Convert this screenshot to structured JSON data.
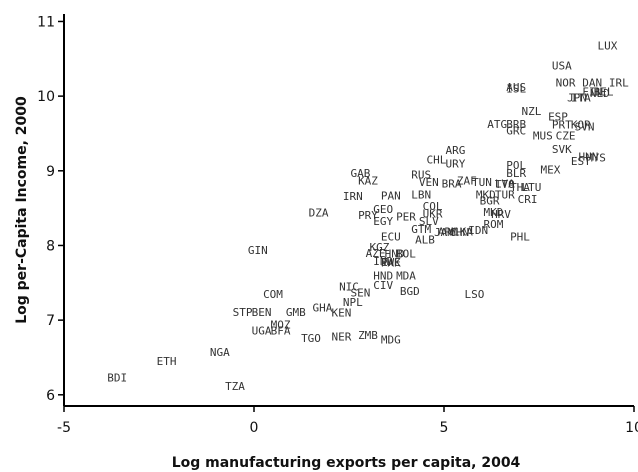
{
  "chart_data": {
    "type": "scatter",
    "xlabel": "Log manufacturing exports per capita, 2004",
    "ylabel": "Log per-Capita Income, 2000",
    "xlim": [
      -5,
      10
    ],
    "ylim": [
      5.85,
      11.1
    ],
    "xticks": [
      -5,
      0,
      5,
      10
    ],
    "yticks": [
      6,
      7,
      8,
      9,
      10,
      11
    ],
    "grid": false,
    "marker": "country-code text label",
    "points": [
      {
        "label": "LUX",
        "x": 9.3,
        "y": 10.68
      },
      {
        "label": "USA",
        "x": 8.1,
        "y": 10.41
      },
      {
        "label": "NOR",
        "x": 8.2,
        "y": 10.18
      },
      {
        "label": "DAN",
        "x": 8.9,
        "y": 10.18
      },
      {
        "label": "IRL",
        "x": 9.6,
        "y": 10.18
      },
      {
        "label": "AUS",
        "x": 6.9,
        "y": 10.12
      },
      {
        "label": "ISL",
        "x": 6.9,
        "y": 10.1
      },
      {
        "label": "FIN",
        "x": 8.9,
        "y": 10.06
      },
      {
        "label": "BEL",
        "x": 9.2,
        "y": 10.06
      },
      {
        "label": "NLD",
        "x": 9.1,
        "y": 10.04
      },
      {
        "label": "ITA",
        "x": 8.6,
        "y": 9.98
      },
      {
        "label": "JPN",
        "x": 8.5,
        "y": 9.98
      },
      {
        "label": "NZL",
        "x": 7.3,
        "y": 9.8
      },
      {
        "label": "ESP",
        "x": 8.0,
        "y": 9.73
      },
      {
        "label": "ATG",
        "x": 6.4,
        "y": 9.63
      },
      {
        "label": "BRB",
        "x": 6.9,
        "y": 9.63
      },
      {
        "label": "PRT",
        "x": 8.1,
        "y": 9.62
      },
      {
        "label": "KOR",
        "x": 8.6,
        "y": 9.62
      },
      {
        "label": "SVN",
        "x": 8.7,
        "y": 9.59
      },
      {
        "label": "GRC",
        "x": 6.9,
        "y": 9.54
      },
      {
        "label": "MUS",
        "x": 7.6,
        "y": 9.47
      },
      {
        "label": "CZE",
        "x": 8.2,
        "y": 9.47
      },
      {
        "label": "SVK",
        "x": 8.1,
        "y": 9.29
      },
      {
        "label": "ARG",
        "x": 5.3,
        "y": 9.28
      },
      {
        "label": "HUN",
        "x": 8.8,
        "y": 9.19
      },
      {
        "label": "MYS",
        "x": 9.0,
        "y": 9.18
      },
      {
        "label": "EST",
        "x": 8.6,
        "y": 9.13
      },
      {
        "label": "CHL",
        "x": 4.8,
        "y": 9.15
      },
      {
        "label": "URY",
        "x": 5.3,
        "y": 9.1
      },
      {
        "label": "POL",
        "x": 6.9,
        "y": 9.08
      },
      {
        "label": "MEX",
        "x": 7.8,
        "y": 9.02
      },
      {
        "label": "BLR",
        "x": 6.9,
        "y": 8.97
      },
      {
        "label": "GAB",
        "x": 2.8,
        "y": 8.97
      },
      {
        "label": "RUS",
        "x": 4.4,
        "y": 8.95
      },
      {
        "label": "KAZ",
        "x": 3.0,
        "y": 8.87
      },
      {
        "label": "VEN",
        "x": 4.6,
        "y": 8.85
      },
      {
        "label": "ZAF",
        "x": 5.6,
        "y": 8.87
      },
      {
        "label": "TUN",
        "x": 6.0,
        "y": 8.85
      },
      {
        "label": "BRA",
        "x": 5.2,
        "y": 8.83
      },
      {
        "label": "LVA",
        "x": 6.6,
        "y": 8.83
      },
      {
        "label": "TTO",
        "x": 6.6,
        "y": 8.82
      },
      {
        "label": "THA",
        "x": 7.0,
        "y": 8.78
      },
      {
        "label": "LTU",
        "x": 7.3,
        "y": 8.78
      },
      {
        "label": "PAN",
        "x": 3.6,
        "y": 8.67
      },
      {
        "label": "IRN",
        "x": 2.6,
        "y": 8.66
      },
      {
        "label": "LBN",
        "x": 4.4,
        "y": 8.68
      },
      {
        "label": "MKD",
        "x": 6.1,
        "y": 8.68
      },
      {
        "label": "TUR",
        "x": 6.6,
        "y": 8.68
      },
      {
        "label": "CRI",
        "x": 7.2,
        "y": 8.62
      },
      {
        "label": "BGR",
        "x": 6.2,
        "y": 8.6
      },
      {
        "label": "COL",
        "x": 4.7,
        "y": 8.53
      },
      {
        "label": "MKD",
        "x": 6.3,
        "y": 8.45
      },
      {
        "label": "HRV",
        "x": 6.5,
        "y": 8.42
      },
      {
        "label": "DZA",
        "x": 1.7,
        "y": 8.44
      },
      {
        "label": "GEO",
        "x": 3.4,
        "y": 8.49
      },
      {
        "label": "PRY",
        "x": 3.0,
        "y": 8.41
      },
      {
        "label": "UKR",
        "x": 4.7,
        "y": 8.43
      },
      {
        "label": "PER",
        "x": 4.0,
        "y": 8.39
      },
      {
        "label": "EGY",
        "x": 3.4,
        "y": 8.33
      },
      {
        "label": "SLV",
        "x": 4.6,
        "y": 8.33
      },
      {
        "label": "ROM",
        "x": 6.3,
        "y": 8.29
      },
      {
        "label": "GTM",
        "x": 4.4,
        "y": 8.22
      },
      {
        "label": "ECU",
        "x": 3.6,
        "y": 8.12
      },
      {
        "label": "ARM",
        "x": 5.1,
        "y": 8.19
      },
      {
        "label": "JAM",
        "x": 5.0,
        "y": 8.18
      },
      {
        "label": "LKA",
        "x": 5.5,
        "y": 8.19
      },
      {
        "label": "IDN",
        "x": 5.9,
        "y": 8.21
      },
      {
        "label": "CHN",
        "x": 5.4,
        "y": 8.18
      },
      {
        "label": "ALB",
        "x": 4.5,
        "y": 8.08
      },
      {
        "label": "PHL",
        "x": 7.0,
        "y": 8.12
      },
      {
        "label": "KGZ",
        "x": 3.3,
        "y": 7.98
      },
      {
        "label": "GIN",
        "x": 0.1,
        "y": 7.94
      },
      {
        "label": "AZE",
        "x": 3.2,
        "y": 7.9
      },
      {
        "label": "HND",
        "x": 3.7,
        "y": 7.89
      },
      {
        "label": "BOL",
        "x": 4.0,
        "y": 7.89
      },
      {
        "label": "IND",
        "x": 3.4,
        "y": 7.79
      },
      {
        "label": "PAK",
        "x": 3.6,
        "y": 7.77
      },
      {
        "label": "ZWE",
        "x": 3.6,
        "y": 7.78
      },
      {
        "label": "MDA",
        "x": 4.0,
        "y": 7.6
      },
      {
        "label": "HND",
        "x": 3.4,
        "y": 7.6
      },
      {
        "label": "NIC",
        "x": 2.5,
        "y": 7.45
      },
      {
        "label": "CIV",
        "x": 3.4,
        "y": 7.47
      },
      {
        "label": "BGD",
        "x": 4.1,
        "y": 7.39
      },
      {
        "label": "SEN",
        "x": 2.8,
        "y": 7.37
      },
      {
        "label": "LSO",
        "x": 5.8,
        "y": 7.35
      },
      {
        "label": "COM",
        "x": 0.5,
        "y": 7.35
      },
      {
        "label": "NPL",
        "x": 2.6,
        "y": 7.24
      },
      {
        "label": "GHA",
        "x": 1.8,
        "y": 7.17
      },
      {
        "label": "KEN",
        "x": 2.3,
        "y": 7.1
      },
      {
        "label": "STP",
        "x": -0.3,
        "y": 7.11
      },
      {
        "label": "BEN",
        "x": 0.2,
        "y": 7.11
      },
      {
        "label": "GMB",
        "x": 1.1,
        "y": 7.11
      },
      {
        "label": "MOZ",
        "x": 0.7,
        "y": 6.94
      },
      {
        "label": "UGA",
        "x": 0.2,
        "y": 6.86
      },
      {
        "label": "BFA",
        "x": 0.7,
        "y": 6.86
      },
      {
        "label": "TGO",
        "x": 1.5,
        "y": 6.76
      },
      {
        "label": "NER",
        "x": 2.3,
        "y": 6.78
      },
      {
        "label": "ZMB",
        "x": 3.0,
        "y": 6.8
      },
      {
        "label": "MDG",
        "x": 3.6,
        "y": 6.74
      },
      {
        "label": "NGA",
        "x": -0.9,
        "y": 6.57
      },
      {
        "label": "ETH",
        "x": -2.3,
        "y": 6.45
      },
      {
        "label": "BDI",
        "x": -3.6,
        "y": 6.23
      },
      {
        "label": "TZA",
        "x": -0.5,
        "y": 6.12
      }
    ]
  }
}
